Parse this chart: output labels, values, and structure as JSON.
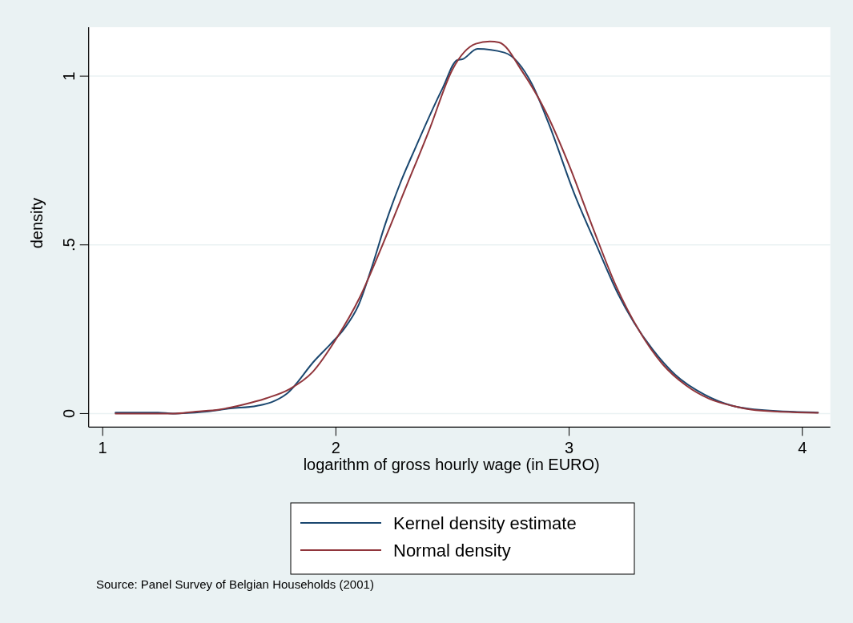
{
  "chart_data": {
    "type": "line",
    "xlabel": "logarithm of gross hourly wage (in EURO)",
    "ylabel": "density",
    "annotations": [
      "Source: Panel Survey of Belgian Households (2001)"
    ],
    "xlim": [
      0.94,
      4.12
    ],
    "ylim": [
      -0.04,
      1.145
    ],
    "xticks": [
      1,
      2,
      3,
      4
    ],
    "yticks": [
      0,
      {
        "value": 0.5,
        "label": ".5"
      },
      1
    ],
    "grid": "y",
    "legend": "bottom",
    "marker": "none",
    "line_style": "solid",
    "series": [
      {
        "name": "Kernel density estimate",
        "color": "#1a476f",
        "x": [
          1.055,
          1.238,
          1.301,
          1.433,
          1.548,
          1.662,
          1.725,
          1.788,
          1.909,
          1.977,
          2.034,
          2.097,
          2.155,
          2.212,
          2.275,
          2.338,
          2.458,
          2.521,
          2.542,
          2.607,
          2.722,
          2.842,
          2.911,
          3.026,
          3.117,
          3.209,
          3.278,
          3.358,
          3.455,
          3.581,
          3.701,
          3.815,
          4.067
        ],
        "values": [
          0.003,
          0.003,
          0,
          0.005,
          0.015,
          0.023,
          0.034,
          0.058,
          0.157,
          0.206,
          0.25,
          0.321,
          0.436,
          0.562,
          0.681,
          0.783,
          0.965,
          1.048,
          1.05,
          1.081,
          1.07,
          0.975,
          0.862,
          0.645,
          0.499,
          0.356,
          0.27,
          0.19,
          0.115,
          0.056,
          0.023,
          0.011,
          0.003
        ]
      },
      {
        "name": "Normal density",
        "color": "#90353b",
        "x": [
          1.055,
          1.3,
          1.4,
          1.5,
          1.6,
          1.7,
          1.8,
          1.9,
          2.0,
          2.1,
          2.2,
          2.3,
          2.4,
          2.5,
          2.6,
          2.66,
          2.7,
          2.8,
          2.9,
          3.0,
          3.1,
          3.2,
          3.3,
          3.4,
          3.5,
          3.6,
          3.7,
          3.8,
          4.067
        ],
        "values": [
          0,
          0,
          0.006,
          0.012,
          0.026,
          0.045,
          0.072,
          0.123,
          0.22,
          0.341,
          0.5,
          0.67,
          0.84,
          1.02,
          1.096,
          1.103,
          1.1,
          1.013,
          0.894,
          0.736,
          0.554,
          0.38,
          0.246,
          0.147,
          0.084,
          0.044,
          0.023,
          0.01,
          0.002
        ]
      }
    ]
  }
}
